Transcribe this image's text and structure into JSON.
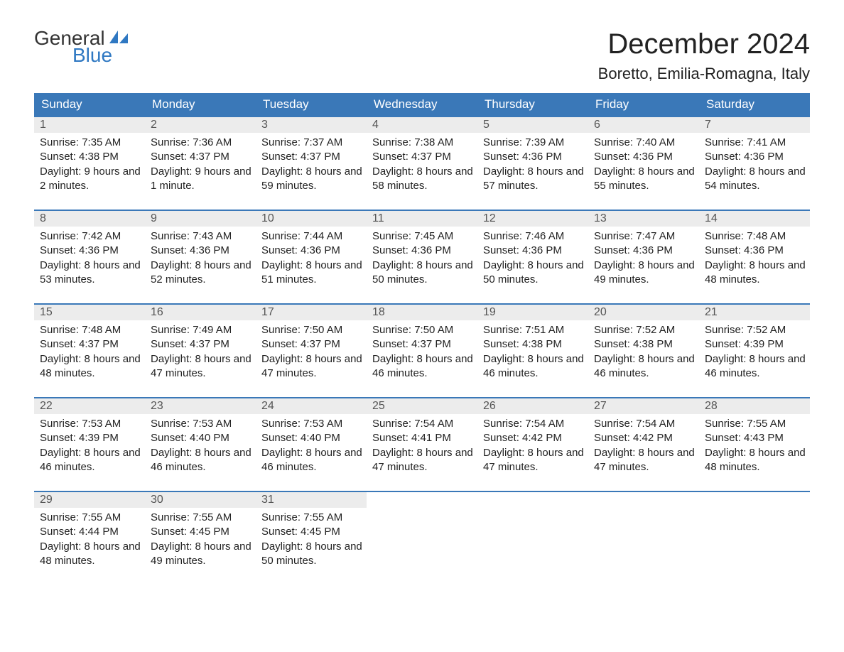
{
  "logo": {
    "general": "General",
    "blue": "Blue"
  },
  "title": "December 2024",
  "location": "Boretto, Emilia-Romagna, Italy",
  "colors": {
    "header_bg": "#3a78b8",
    "header_text": "#ffffff",
    "week_border": "#3a78b8",
    "daynum_bg": "#ececec",
    "daynum_text": "#555555",
    "body_text": "#222222",
    "logo_blue": "#2f78c2",
    "logo_gray": "#333333",
    "background": "#ffffff"
  },
  "day_names": [
    "Sunday",
    "Monday",
    "Tuesday",
    "Wednesday",
    "Thursday",
    "Friday",
    "Saturday"
  ],
  "weeks": [
    [
      {
        "n": "1",
        "sunrise": "Sunrise: 7:35 AM",
        "sunset": "Sunset: 4:38 PM",
        "daylight": "Daylight: 9 hours and 2 minutes."
      },
      {
        "n": "2",
        "sunrise": "Sunrise: 7:36 AM",
        "sunset": "Sunset: 4:37 PM",
        "daylight": "Daylight: 9 hours and 1 minute."
      },
      {
        "n": "3",
        "sunrise": "Sunrise: 7:37 AM",
        "sunset": "Sunset: 4:37 PM",
        "daylight": "Daylight: 8 hours and 59 minutes."
      },
      {
        "n": "4",
        "sunrise": "Sunrise: 7:38 AM",
        "sunset": "Sunset: 4:37 PM",
        "daylight": "Daylight: 8 hours and 58 minutes."
      },
      {
        "n": "5",
        "sunrise": "Sunrise: 7:39 AM",
        "sunset": "Sunset: 4:36 PM",
        "daylight": "Daylight: 8 hours and 57 minutes."
      },
      {
        "n": "6",
        "sunrise": "Sunrise: 7:40 AM",
        "sunset": "Sunset: 4:36 PM",
        "daylight": "Daylight: 8 hours and 55 minutes."
      },
      {
        "n": "7",
        "sunrise": "Sunrise: 7:41 AM",
        "sunset": "Sunset: 4:36 PM",
        "daylight": "Daylight: 8 hours and 54 minutes."
      }
    ],
    [
      {
        "n": "8",
        "sunrise": "Sunrise: 7:42 AM",
        "sunset": "Sunset: 4:36 PM",
        "daylight": "Daylight: 8 hours and 53 minutes."
      },
      {
        "n": "9",
        "sunrise": "Sunrise: 7:43 AM",
        "sunset": "Sunset: 4:36 PM",
        "daylight": "Daylight: 8 hours and 52 minutes."
      },
      {
        "n": "10",
        "sunrise": "Sunrise: 7:44 AM",
        "sunset": "Sunset: 4:36 PM",
        "daylight": "Daylight: 8 hours and 51 minutes."
      },
      {
        "n": "11",
        "sunrise": "Sunrise: 7:45 AM",
        "sunset": "Sunset: 4:36 PM",
        "daylight": "Daylight: 8 hours and 50 minutes."
      },
      {
        "n": "12",
        "sunrise": "Sunrise: 7:46 AM",
        "sunset": "Sunset: 4:36 PM",
        "daylight": "Daylight: 8 hours and 50 minutes."
      },
      {
        "n": "13",
        "sunrise": "Sunrise: 7:47 AM",
        "sunset": "Sunset: 4:36 PM",
        "daylight": "Daylight: 8 hours and 49 minutes."
      },
      {
        "n": "14",
        "sunrise": "Sunrise: 7:48 AM",
        "sunset": "Sunset: 4:36 PM",
        "daylight": "Daylight: 8 hours and 48 minutes."
      }
    ],
    [
      {
        "n": "15",
        "sunrise": "Sunrise: 7:48 AM",
        "sunset": "Sunset: 4:37 PM",
        "daylight": "Daylight: 8 hours and 48 minutes."
      },
      {
        "n": "16",
        "sunrise": "Sunrise: 7:49 AM",
        "sunset": "Sunset: 4:37 PM",
        "daylight": "Daylight: 8 hours and 47 minutes."
      },
      {
        "n": "17",
        "sunrise": "Sunrise: 7:50 AM",
        "sunset": "Sunset: 4:37 PM",
        "daylight": "Daylight: 8 hours and 47 minutes."
      },
      {
        "n": "18",
        "sunrise": "Sunrise: 7:50 AM",
        "sunset": "Sunset: 4:37 PM",
        "daylight": "Daylight: 8 hours and 46 minutes."
      },
      {
        "n": "19",
        "sunrise": "Sunrise: 7:51 AM",
        "sunset": "Sunset: 4:38 PM",
        "daylight": "Daylight: 8 hours and 46 minutes."
      },
      {
        "n": "20",
        "sunrise": "Sunrise: 7:52 AM",
        "sunset": "Sunset: 4:38 PM",
        "daylight": "Daylight: 8 hours and 46 minutes."
      },
      {
        "n": "21",
        "sunrise": "Sunrise: 7:52 AM",
        "sunset": "Sunset: 4:39 PM",
        "daylight": "Daylight: 8 hours and 46 minutes."
      }
    ],
    [
      {
        "n": "22",
        "sunrise": "Sunrise: 7:53 AM",
        "sunset": "Sunset: 4:39 PM",
        "daylight": "Daylight: 8 hours and 46 minutes."
      },
      {
        "n": "23",
        "sunrise": "Sunrise: 7:53 AM",
        "sunset": "Sunset: 4:40 PM",
        "daylight": "Daylight: 8 hours and 46 minutes."
      },
      {
        "n": "24",
        "sunrise": "Sunrise: 7:53 AM",
        "sunset": "Sunset: 4:40 PM",
        "daylight": "Daylight: 8 hours and 46 minutes."
      },
      {
        "n": "25",
        "sunrise": "Sunrise: 7:54 AM",
        "sunset": "Sunset: 4:41 PM",
        "daylight": "Daylight: 8 hours and 47 minutes."
      },
      {
        "n": "26",
        "sunrise": "Sunrise: 7:54 AM",
        "sunset": "Sunset: 4:42 PM",
        "daylight": "Daylight: 8 hours and 47 minutes."
      },
      {
        "n": "27",
        "sunrise": "Sunrise: 7:54 AM",
        "sunset": "Sunset: 4:42 PM",
        "daylight": "Daylight: 8 hours and 47 minutes."
      },
      {
        "n": "28",
        "sunrise": "Sunrise: 7:55 AM",
        "sunset": "Sunset: 4:43 PM",
        "daylight": "Daylight: 8 hours and 48 minutes."
      }
    ],
    [
      {
        "n": "29",
        "sunrise": "Sunrise: 7:55 AM",
        "sunset": "Sunset: 4:44 PM",
        "daylight": "Daylight: 8 hours and 48 minutes."
      },
      {
        "n": "30",
        "sunrise": "Sunrise: 7:55 AM",
        "sunset": "Sunset: 4:45 PM",
        "daylight": "Daylight: 8 hours and 49 minutes."
      },
      {
        "n": "31",
        "sunrise": "Sunrise: 7:55 AM",
        "sunset": "Sunset: 4:45 PM",
        "daylight": "Daylight: 8 hours and 50 minutes."
      },
      {
        "empty": true
      },
      {
        "empty": true
      },
      {
        "empty": true
      },
      {
        "empty": true
      }
    ]
  ]
}
